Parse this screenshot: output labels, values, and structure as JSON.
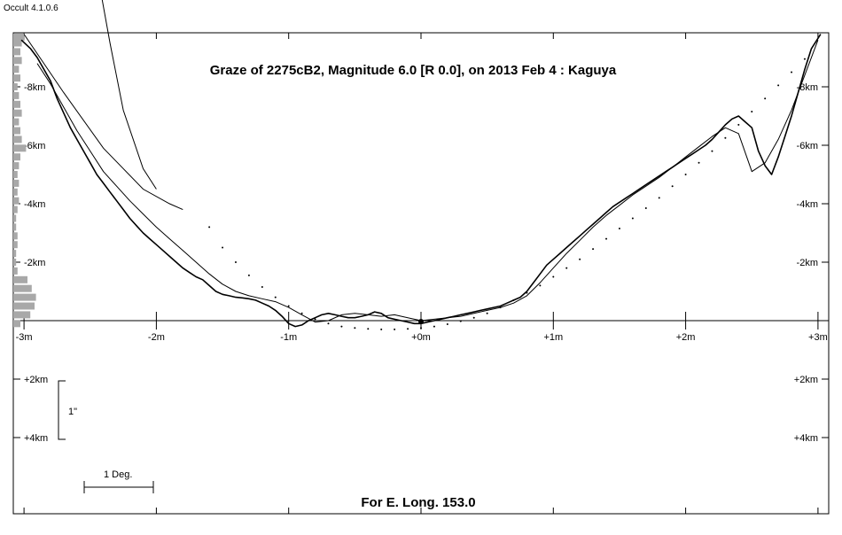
{
  "app": {
    "version_label": "Occult 4.1.0.6"
  },
  "chart_data": {
    "type": "line",
    "title": "Graze of  2275cB2,  Magnitude 6.0 [R 0.0],  on 2013 Feb  4  :  Kaguya",
    "footer": "For E. Long. 153.0",
    "x_tick_labels": [
      "-3m",
      "-2m",
      "-1m",
      "+0m",
      "+1m",
      "+2m",
      "+3m"
    ],
    "x_ticks_min": [
      -3,
      -2,
      -1,
      0,
      1,
      2,
      3
    ],
    "y_tick_labels_left": [
      "-8km",
      "-6km",
      "-4km",
      "-2km",
      "+2km",
      "+4km"
    ],
    "y_tick_labels_right": [
      "-8km",
      "-6km",
      "-4km",
      "-2km",
      "+2km",
      "+4km"
    ],
    "y_ticks_km": [
      -8,
      -6,
      -4,
      -2,
      2,
      4
    ],
    "xlim_min": [
      -3,
      3
    ],
    "ylim_km": [
      -9.8,
      6.5
    ],
    "scale_bar_vertical": "1\"",
    "scale_bar_horizontal": "1 Deg.",
    "series": [
      {
        "style": "limb-profile",
        "x": [
          -3.02,
          -2.95,
          -2.9,
          -2.85,
          -2.8,
          -2.75,
          -2.7,
          -2.65,
          -2.6,
          -2.55,
          -2.5,
          -2.45,
          -2.4,
          -2.35,
          -2.3,
          -2.25,
          -2.2,
          -2.15,
          -2.1,
          -2.05,
          -2.0,
          -1.95,
          -1.9,
          -1.85,
          -1.8,
          -1.75,
          -1.7,
          -1.65,
          -1.6,
          -1.55,
          -1.5,
          -1.45,
          -1.4,
          -1.35,
          -1.3,
          -1.25,
          -1.2,
          -1.15,
          -1.1,
          -1.05,
          -1.0,
          -0.95,
          -0.9,
          -0.85,
          -0.8,
          -0.75,
          -0.7,
          -0.65,
          -0.6,
          -0.55,
          -0.5,
          -0.45,
          -0.4,
          -0.35,
          -0.3,
          -0.25,
          -0.2,
          -0.15,
          -0.1,
          -0.05,
          0.0,
          0.05,
          0.1,
          0.15,
          0.2,
          0.25,
          0.3,
          0.35,
          0.4,
          0.45,
          0.5,
          0.55,
          0.6,
          0.65,
          0.7,
          0.75,
          0.8,
          0.85,
          0.9,
          0.95,
          1.0,
          1.05,
          1.1,
          1.15,
          1.2,
          1.25,
          1.3,
          1.35,
          1.4,
          1.45,
          1.5,
          1.55,
          1.6,
          1.65,
          1.7,
          1.75,
          1.8,
          1.85,
          1.9,
          1.95,
          2.0,
          2.05,
          2.1,
          2.15,
          2.2,
          2.25,
          2.3,
          2.35,
          2.4,
          2.45,
          2.5,
          2.55,
          2.6,
          2.65,
          2.7,
          2.75,
          2.8,
          2.85,
          2.9,
          2.95,
          3.02
        ],
        "y": [
          -9.6,
          -9.3,
          -9.0,
          -8.6,
          -8.2,
          -7.6,
          -7.1,
          -6.6,
          -6.2,
          -5.8,
          -5.4,
          -5.0,
          -4.7,
          -4.4,
          -4.1,
          -3.8,
          -3.5,
          -3.25,
          -3.0,
          -2.8,
          -2.6,
          -2.4,
          -2.2,
          -2.0,
          -1.8,
          -1.65,
          -1.5,
          -1.4,
          -1.2,
          -1.0,
          -0.9,
          -0.85,
          -0.8,
          -0.78,
          -0.75,
          -0.7,
          -0.6,
          -0.5,
          -0.35,
          -0.15,
          0.1,
          0.2,
          0.15,
          0.0,
          -0.1,
          -0.2,
          -0.25,
          -0.2,
          -0.15,
          -0.1,
          -0.1,
          -0.15,
          -0.2,
          -0.3,
          -0.25,
          -0.1,
          -0.05,
          0.0,
          0.05,
          0.1,
          0.1,
          0.05,
          0.0,
          -0.05,
          -0.1,
          -0.15,
          -0.2,
          -0.25,
          -0.3,
          -0.35,
          -0.4,
          -0.45,
          -0.5,
          -0.6,
          -0.7,
          -0.8,
          -1.0,
          -1.3,
          -1.6,
          -1.9,
          -2.1,
          -2.3,
          -2.5,
          -2.7,
          -2.9,
          -3.1,
          -3.3,
          -3.5,
          -3.7,
          -3.9,
          -4.05,
          -4.2,
          -4.35,
          -4.5,
          -4.65,
          -4.8,
          -4.95,
          -5.1,
          -5.25,
          -5.4,
          -5.55,
          -5.7,
          -5.85,
          -6.0,
          -6.2,
          -6.45,
          -6.7,
          -6.9,
          -7.0,
          -6.8,
          -6.6,
          -5.8,
          -5.3,
          -5.0,
          -5.6,
          -6.3,
          -7.0,
          -7.8,
          -8.6,
          -9.3,
          -9.8
        ]
      },
      {
        "style": "smooth-fit",
        "x": [
          -2.9,
          -2.8,
          -2.7,
          -2.6,
          -2.5,
          -2.4,
          -2.3,
          -2.2,
          -2.1,
          -2.0,
          -1.9,
          -1.8,
          -1.7,
          -1.6,
          -1.5,
          -1.4,
          -1.3,
          -1.2,
          -1.1,
          -1.0,
          -0.9,
          -0.8,
          -0.7,
          -0.6,
          -0.5,
          -0.4,
          -0.3,
          -0.2,
          -0.1,
          0.0,
          0.1,
          0.2,
          0.3,
          0.4,
          0.5,
          0.6,
          0.7,
          0.8,
          0.9,
          1.0,
          1.1,
          1.2,
          1.3,
          1.4,
          1.5,
          1.6,
          1.7,
          1.8,
          1.9,
          2.0,
          2.1,
          2.2,
          2.3,
          2.4,
          2.5,
          2.6,
          2.7,
          2.8,
          2.9,
          3.0
        ],
        "y": [
          -8.8,
          -8.1,
          -7.3,
          -6.5,
          -5.8,
          -5.1,
          -4.6,
          -4.1,
          -3.65,
          -3.2,
          -2.8,
          -2.4,
          -2.0,
          -1.6,
          -1.25,
          -1.0,
          -0.85,
          -0.75,
          -0.65,
          -0.45,
          -0.2,
          0.05,
          0.0,
          -0.2,
          -0.25,
          -0.2,
          -0.15,
          -0.2,
          -0.1,
          0.0,
          -0.05,
          -0.1,
          -0.15,
          -0.25,
          -0.35,
          -0.45,
          -0.6,
          -0.85,
          -1.3,
          -1.8,
          -2.3,
          -2.75,
          -3.2,
          -3.6,
          -3.95,
          -4.3,
          -4.6,
          -4.9,
          -5.25,
          -5.6,
          -5.95,
          -6.3,
          -6.6,
          -6.4,
          -5.1,
          -5.4,
          -6.2,
          -7.2,
          -8.4,
          -9.6
        ]
      },
      {
        "style": "dotted-limit",
        "x": [
          -1.6,
          -1.5,
          -1.4,
          -1.3,
          -1.2,
          -1.1,
          -1.0,
          -0.9,
          -0.8,
          -0.7,
          -0.6,
          -0.5,
          -0.4,
          -0.3,
          -0.2,
          -0.1,
          0.0,
          0.1,
          0.2,
          0.3,
          0.4,
          0.5,
          0.6,
          0.7,
          0.8,
          0.9,
          1.0,
          1.1,
          1.2,
          1.3,
          1.4,
          1.5,
          1.6,
          1.7,
          1.8,
          1.9,
          2.0,
          2.1,
          2.2,
          2.3,
          2.4,
          2.5,
          2.6,
          2.7,
          2.8,
          2.9
        ],
        "y": [
          -3.2,
          -2.5,
          -2.0,
          -1.55,
          -1.15,
          -0.8,
          -0.5,
          -0.25,
          -0.05,
          0.1,
          0.2,
          0.25,
          0.28,
          0.3,
          0.3,
          0.28,
          0.25,
          0.2,
          0.12,
          0.02,
          -0.1,
          -0.25,
          -0.45,
          -0.7,
          -0.95,
          -1.2,
          -1.5,
          -1.8,
          -2.1,
          -2.45,
          -2.8,
          -3.15,
          -3.5,
          -3.85,
          -4.2,
          -4.6,
          -5.0,
          -5.4,
          -5.8,
          -6.25,
          -6.7,
          -7.15,
          -7.6,
          -8.05,
          -8.5,
          -8.95
        ]
      }
    ],
    "grazing_arcs": [
      {
        "x": [
          -3.0,
          -2.7,
          -2.4,
          -2.1,
          -1.9,
          -1.8
        ],
        "y": [
          -9.8,
          -7.8,
          -5.9,
          -4.5,
          -4.0,
          -3.8
        ]
      },
      {
        "x": [
          -2.45,
          -2.35,
          -2.25,
          -2.1,
          -2.0
        ],
        "y": [
          -12.0,
          -9.5,
          -7.2,
          -5.2,
          -4.5
        ]
      }
    ],
    "event_point": {
      "x": 0.0,
      "y": 0.0,
      "label": "+0m"
    },
    "histogram": {
      "y_km": [
        -9.7,
        -9.5,
        -9.2,
        -8.9,
        -8.6,
        -8.3,
        -8.0,
        -7.7,
        -7.4,
        -7.1,
        -6.8,
        -6.5,
        -6.2,
        -5.9,
        -5.6,
        -5.3,
        -5.0,
        -4.7,
        -4.4,
        -4.1,
        -3.8,
        -3.5,
        -3.2,
        -2.9,
        -2.6,
        -2.3,
        -2.0,
        -1.7,
        -1.4,
        -1.1,
        -0.8,
        -0.5,
        -0.2,
        0.1
      ],
      "counts": [
        8,
        6,
        5,
        6,
        4,
        5,
        3,
        4,
        5,
        6,
        4,
        5,
        6,
        9,
        5,
        4,
        3,
        4,
        3,
        4,
        3,
        2,
        2,
        3,
        3,
        2,
        2,
        3,
        10,
        13,
        16,
        15,
        12,
        5
      ]
    }
  }
}
